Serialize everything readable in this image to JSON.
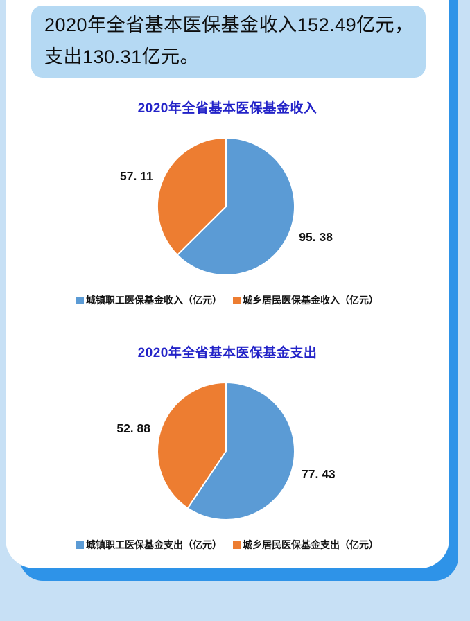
{
  "headline": {
    "line1": "2020年全省基本医保基金收入152.49亿元，",
    "line2": "支出130.31亿元。"
  },
  "colors": {
    "page_background": "#c7e0f5",
    "accent_blue": "#2e93e8",
    "card_background": "#ffffff",
    "headline_background": "#b5d9f3",
    "title_blue": "#2323c8",
    "blue_slice": "#5b9bd5",
    "orange_slice": "#ed7d31",
    "label_black": "#111111"
  },
  "chart_data": [
    {
      "type": "pie",
      "title": "2020年全省基本医保基金收入",
      "total": 152.49,
      "start_angle_deg": 0,
      "legend_position": "bottom",
      "slices": [
        {
          "label": "城镇职工医保基金收入（亿元）",
          "value": 95.38,
          "display": "95. 38",
          "color": "#5b9bd5"
        },
        {
          "label": "城乡居民医保基金收入（亿元）",
          "value": 57.11,
          "display": "57. 11",
          "color": "#ed7d31"
        }
      ]
    },
    {
      "type": "pie",
      "title": "2020年全省基本医保基金支出",
      "total": 130.31,
      "start_angle_deg": 0,
      "legend_position": "bottom",
      "slices": [
        {
          "label": "城镇职工医保基金支出（亿元）",
          "value": 77.43,
          "display": "77. 43",
          "color": "#5b9bd5"
        },
        {
          "label": "城乡居民医保基金支出（亿元）",
          "value": 52.88,
          "display": "52. 88",
          "color": "#ed7d31"
        }
      ]
    }
  ]
}
